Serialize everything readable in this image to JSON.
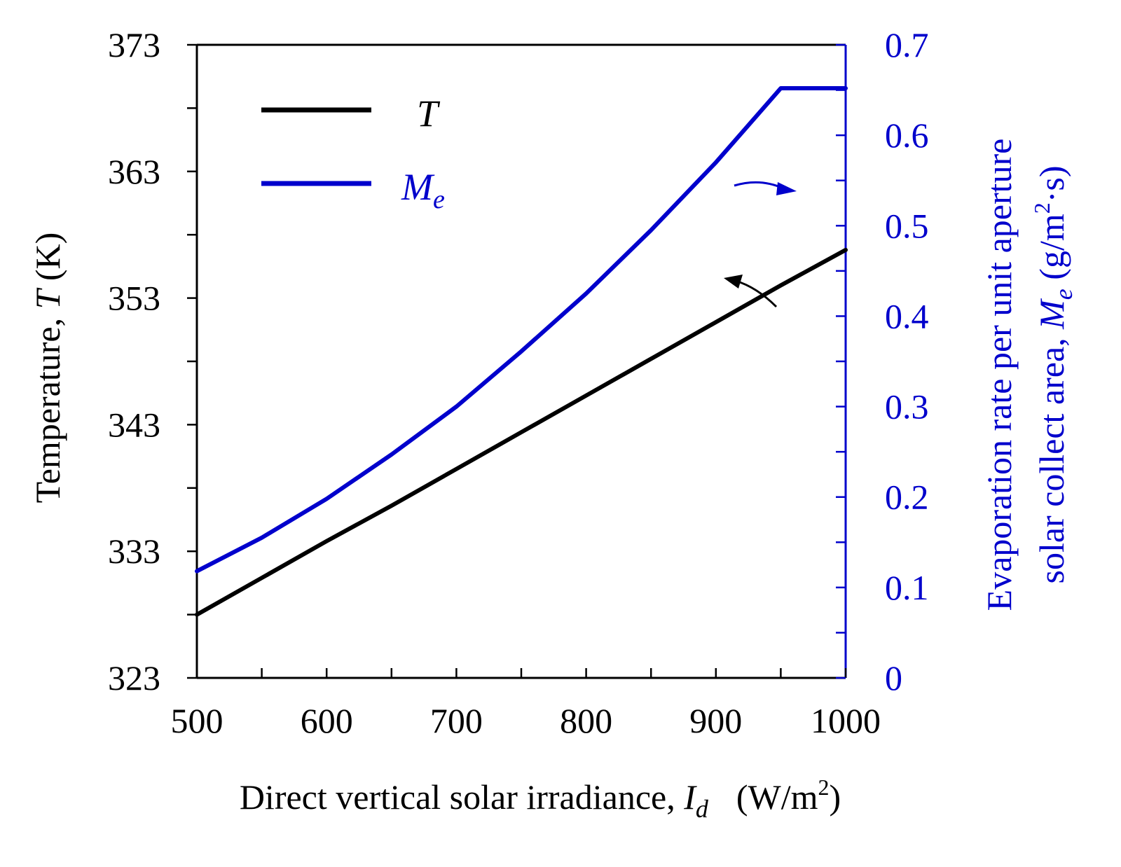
{
  "chart_data": {
    "type": "line",
    "xlabel": {
      "main": "Direct vertical solar irradiance, ",
      "sym": "I",
      "sub": "d",
      "unit_pre": "(W/m",
      "unit_sup": "2",
      "unit_post": ")"
    },
    "ylabel_left": {
      "main": "Temperature, ",
      "sym": "T",
      "unit": " (K)"
    },
    "ylabel_right": {
      "line1": "Evaporation rate per unit aperture",
      "line2_main": "solar collect area, ",
      "sym": "M",
      "sub": "e",
      "unit_pre": " (g/m",
      "unit_sup": "2",
      "unit_post": "·s)"
    },
    "xlim": [
      500,
      1000
    ],
    "ylim_left": [
      323,
      373
    ],
    "ylim_right": [
      0,
      0.7
    ],
    "x_ticks": [
      "500",
      "600",
      "700",
      "800",
      "900",
      "1000"
    ],
    "y_left_ticks": [
      "323",
      "333",
      "343",
      "353",
      "363",
      "373"
    ],
    "y_right_ticks": [
      "0",
      "0.1",
      "0.2",
      "0.3",
      "0.4",
      "0.5",
      "0.6",
      "0.7"
    ],
    "grid": false,
    "legend": "top-left",
    "series": [
      {
        "name": "T",
        "axis": "left",
        "color": "#000000",
        "x": [
          500,
          550,
          600,
          650,
          700,
          750,
          800,
          850,
          900,
          950,
          1000
        ],
        "y": [
          328.0,
          330.9,
          333.8,
          336.6,
          339.5,
          342.4,
          345.3,
          348.2,
          351.1,
          354.0,
          356.8
        ]
      },
      {
        "name": "M",
        "name_sub": "e",
        "axis": "right",
        "color": "#0000cc",
        "x": [
          500,
          550,
          600,
          650,
          700,
          750,
          800,
          850,
          900,
          950,
          1000
        ],
        "y": [
          0.118,
          0.155,
          0.198,
          0.247,
          0.3,
          0.361,
          0.425,
          0.495,
          0.57,
          0.652,
          0.652
        ]
      }
    ],
    "annotations": [
      {
        "kind": "arrow",
        "points_to": "left",
        "color": "#000000"
      },
      {
        "kind": "arrow",
        "points_to": "right",
        "color": "#0000cc"
      }
    ]
  }
}
